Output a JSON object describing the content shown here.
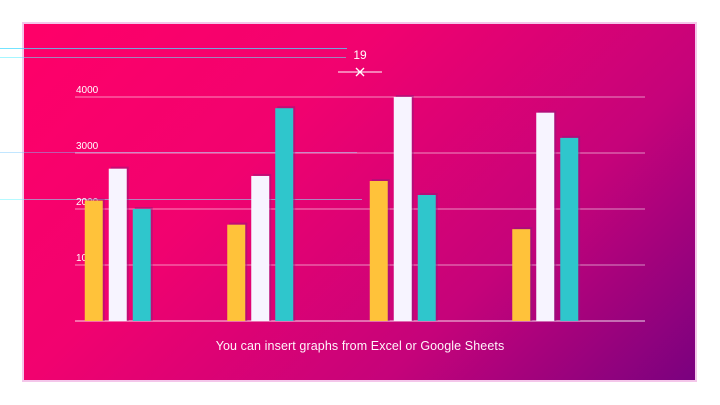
{
  "chart_data": {
    "type": "bar",
    "categories": [
      "",
      "",
      "",
      ""
    ],
    "series": [
      {
        "values": [
          2150,
          1720,
          2500,
          1640
        ],
        "color": "#ffc23a"
      },
      {
        "values": [
          2720,
          2590,
          4000,
          3720
        ],
        "color": "#f7f4ff"
      },
      {
        "values": [
          2000,
          3800,
          2250,
          3270
        ],
        "color": "#2fc6cc"
      }
    ],
    "y_ticks": [
      0,
      1000,
      2000,
      3000,
      4000
    ],
    "ylim": [
      0,
      4000
    ],
    "grid": true
  },
  "overlay": {
    "guide_label": "19"
  },
  "caption": "You can insert graphs from Excel or Google Sheets",
  "colors": {
    "gradient_start": "#ff0068",
    "gradient_end": "#7a017f",
    "gridline": "#ffffff"
  }
}
